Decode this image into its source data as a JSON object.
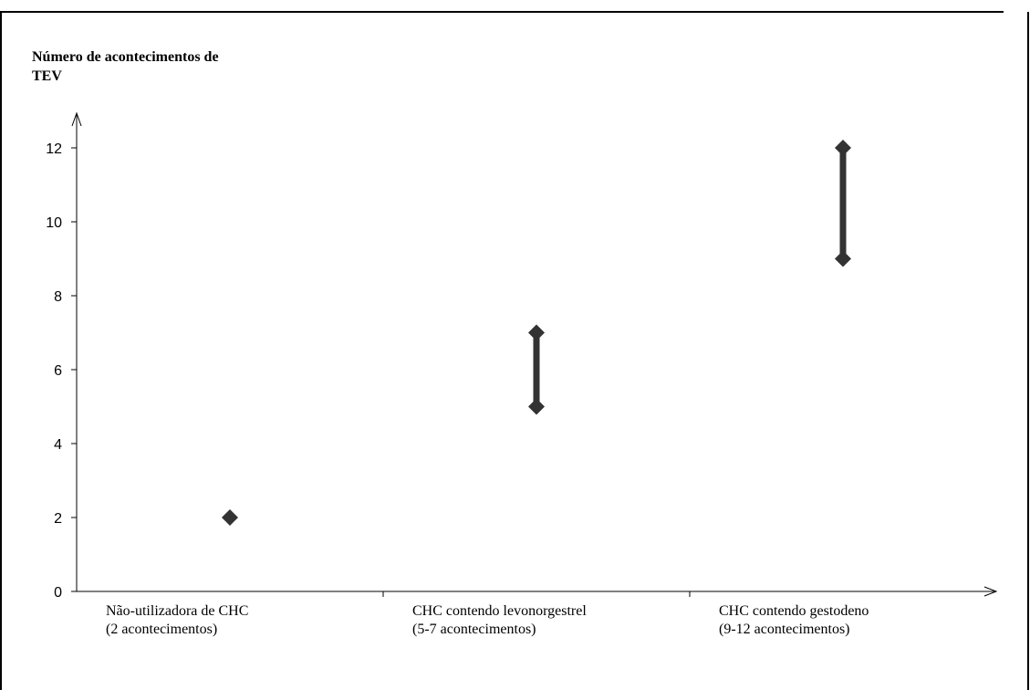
{
  "chart_data": {
    "type": "range",
    "ylabel_lines": [
      "Número de acontecimentos de",
      "TEV"
    ],
    "ylim": [
      0,
      12
    ],
    "yticks": [
      "0",
      "2",
      "4",
      "6",
      "8",
      "10",
      "12"
    ],
    "categories": [
      {
        "lines": [
          "Não-utilizadora de CHC",
          "(2 acontecimentos)"
        ],
        "low": 2,
        "high": 2
      },
      {
        "lines": [
          "CHC contendo levonorgestrel",
          "(5-7 acontecimentos)"
        ],
        "low": 5,
        "high": 7
      },
      {
        "lines": [
          "CHC contendo gestodeno",
          "(9-12 acontecimentos)"
        ],
        "low": 9,
        "high": 12
      }
    ],
    "grid": false,
    "legend": "none",
    "colors": {
      "marker": "#333333",
      "axis": "#000000"
    }
  }
}
